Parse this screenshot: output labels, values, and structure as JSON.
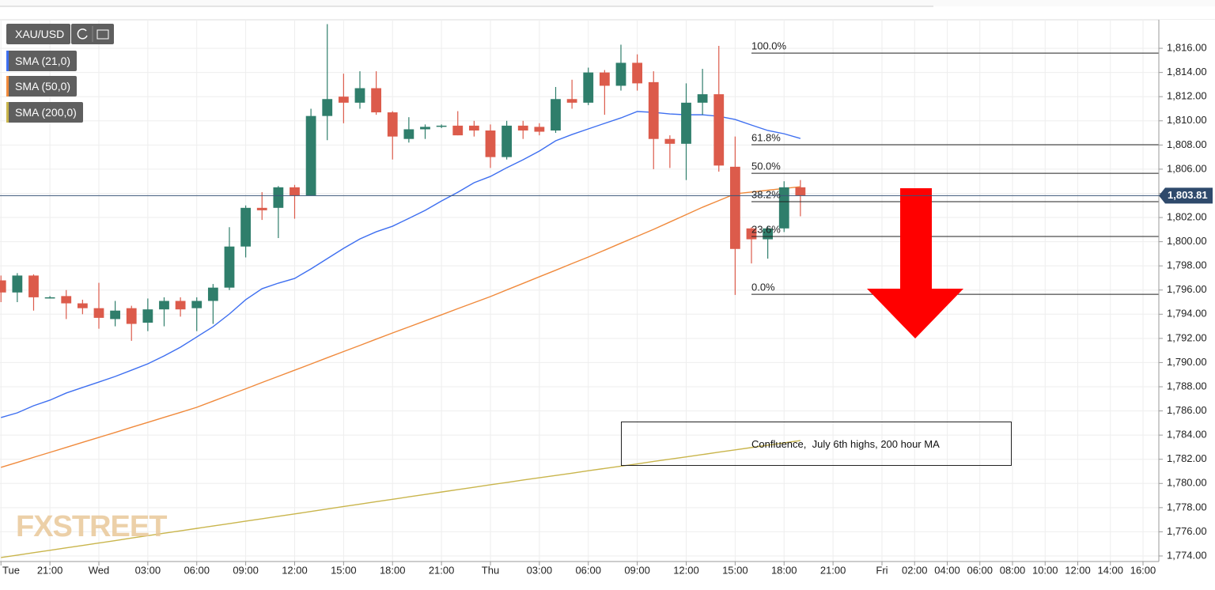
{
  "chart_data": {
    "type": "candlestick",
    "symbol": "XAU/USD",
    "x": [
      -6,
      -5,
      -4,
      -3,
      -2,
      -1,
      0,
      1,
      2,
      3,
      4,
      5,
      6,
      7,
      8,
      9,
      10,
      11,
      12,
      13,
      14,
      15,
      16,
      17,
      18,
      19,
      20,
      21,
      22,
      23,
      24,
      25,
      26,
      27,
      28,
      29,
      30,
      31,
      32,
      33,
      34,
      35,
      36,
      37,
      38,
      39,
      40,
      41,
      42,
      43
    ],
    "open": [
      1796.8,
      1795.8,
      1797.2,
      1795.4,
      1795.5,
      1794.9,
      1794.5,
      1793.6,
      1794.5,
      1793.3,
      1794.4,
      1795.1,
      1794.5,
      1795.1,
      1796.2,
      1799.6,
      1802.8,
      1802.8,
      1804.5,
      1803.8,
      1810.4,
      1812.0,
      1811.5,
      1812.7,
      1810.7,
      1808.5,
      1809.3,
      1809.6,
      1809.6,
      1809.6,
      1809.2,
      1807.0,
      1809.6,
      1809.5,
      1809.2,
      1811.8,
      1811.5,
      1814.0,
      1812.9,
      1814.8,
      1813.2,
      1808.5,
      1808.1,
      1811.5,
      1812.2,
      1806.2,
      1801.1,
      1800.2,
      1801.1,
      1804.5
    ],
    "high": [
      1797.2,
      1797.4,
      1797.3,
      1795.5,
      1796.0,
      1795.2,
      1796.6,
      1795.1,
      1794.7,
      1795.3,
      1795.4,
      1795.4,
      1795.4,
      1796.5,
      1801.2,
      1803.0,
      1804.1,
      1804.6,
      1804.7,
      1811.0,
      1818.0,
      1813.9,
      1814.1,
      1814.1,
      1810.8,
      1810.3,
      1809.7,
      1809.7,
      1810.8,
      1810.0,
      1809.7,
      1810.0,
      1810.0,
      1809.8,
      1812.8,
      1813.4,
      1814.4,
      1814.2,
      1816.3,
      1815.5,
      1814.1,
      1808.8,
      1813.1,
      1814.3,
      1816.2,
      1808.7,
      1801.2,
      1801.3,
      1805.0,
      1805.1
    ],
    "low": [
      1795.0,
      1795.0,
      1794.3,
      1795.3,
      1793.6,
      1794.0,
      1792.8,
      1793.0,
      1791.8,
      1792.6,
      1793.0,
      1793.8,
      1792.6,
      1793.2,
      1796.0,
      1798.7,
      1801.8,
      1800.3,
      1801.9,
      1803.8,
      1808.4,
      1809.8,
      1811.0,
      1810.5,
      1806.8,
      1808.2,
      1808.5,
      1809.4,
      1808.8,
      1808.7,
      1806.1,
      1806.8,
      1808.5,
      1808.8,
      1809.0,
      1811.0,
      1811.3,
      1810.5,
      1812.5,
      1812.5,
      1806.0,
      1806.1,
      1805.1,
      1810.5,
      1805.8,
      1795.6,
      1798.2,
      1798.6,
      1800.8,
      1802.1
    ],
    "close": [
      1795.8,
      1797.2,
      1795.4,
      1795.4,
      1794.9,
      1794.5,
      1793.7,
      1794.3,
      1793.2,
      1794.4,
      1795.1,
      1794.4,
      1795.1,
      1796.2,
      1799.6,
      1802.8,
      1802.6,
      1804.5,
      1803.8,
      1810.4,
      1811.8,
      1811.5,
      1812.7,
      1810.7,
      1808.7,
      1809.3,
      1809.5,
      1809.6,
      1808.8,
      1809.2,
      1807.0,
      1809.6,
      1809.2,
      1809.1,
      1811.8,
      1811.5,
      1814.0,
      1812.9,
      1814.8,
      1813.1,
      1808.5,
      1808.1,
      1811.5,
      1812.2,
      1806.3,
      1799.4,
      1800.2,
      1801.1,
      1804.5,
      1803.8
    ],
    "up_color": "#2f7e6b",
    "down_color": "#dc5b4b",
    "series": [
      {
        "name": "SMA (21,0)",
        "color": "#3e6ff0",
        "values": [
          1785.45,
          1785.84,
          1786.43,
          1786.89,
          1787.48,
          1787.94,
          1788.39,
          1788.85,
          1789.37,
          1789.9,
          1790.55,
          1791.27,
          1792.12,
          1792.97,
          1794.02,
          1795.2,
          1796.11,
          1796.57,
          1796.96,
          1797.75,
          1798.6,
          1799.45,
          1800.23,
          1800.82,
          1801.28,
          1801.93,
          1802.59,
          1803.37,
          1804.09,
          1804.88,
          1805.4,
          1806.12,
          1806.78,
          1807.5,
          1808.35,
          1808.87,
          1809.33,
          1809.79,
          1810.24,
          1810.77,
          1810.7,
          1810.57,
          1810.5,
          1810.5,
          1810.37,
          1810.11,
          1809.65,
          1809.2,
          1808.93,
          1808.54
        ]
      },
      {
        "name": "SMA (50,0)",
        "color": "#f08a3c",
        "values": [
          1781.33,
          1781.74,
          1782.16,
          1782.57,
          1782.98,
          1783.4,
          1783.81,
          1784.22,
          1784.64,
          1785.05,
          1785.47,
          1785.88,
          1786.3,
          1786.81,
          1787.32,
          1787.83,
          1788.35,
          1788.86,
          1789.37,
          1789.88,
          1790.4,
          1790.91,
          1791.42,
          1791.94,
          1792.45,
          1792.95,
          1793.45,
          1793.95,
          1794.46,
          1794.96,
          1795.46,
          1796.01,
          1796.55,
          1797.1,
          1797.64,
          1798.19,
          1798.73,
          1799.3,
          1799.88,
          1800.45,
          1801.02,
          1801.63,
          1802.24,
          1802.85,
          1803.4,
          1803.96,
          1804.11,
          1804.26,
          1804.4,
          1804.55
        ]
      },
      {
        "name": "SMA (200,0)",
        "color": "#c9b54c",
        "values": [
          1773.87,
          1774.07,
          1774.27,
          1774.47,
          1774.67,
          1774.87,
          1775.07,
          1775.27,
          1775.48,
          1775.68,
          1775.88,
          1776.08,
          1776.28,
          1776.48,
          1776.68,
          1776.88,
          1777.08,
          1777.28,
          1777.48,
          1777.68,
          1777.89,
          1778.09,
          1778.29,
          1778.49,
          1778.69,
          1778.89,
          1779.09,
          1779.29,
          1779.49,
          1779.69,
          1779.89,
          1780.08,
          1780.28,
          1780.47,
          1780.66,
          1780.85,
          1781.05,
          1781.24,
          1781.43,
          1781.62,
          1781.82,
          1782.01,
          1782.2,
          1782.39,
          1782.59,
          1782.78,
          1782.97,
          1783.16,
          1783.36,
          1783.55
        ]
      }
    ],
    "fib_start": 40,
    "fib_levels": [
      {
        "label": "100.0%",
        "value": 1815.6
      },
      {
        "label": "61.8%",
        "value": 1808.02
      },
      {
        "label": "50.0%",
        "value": 1805.66
      },
      {
        "label": "38.2%",
        "value": 1803.31
      },
      {
        "label": "23.6%",
        "value": 1800.43
      },
      {
        "label": "0.0%",
        "value": 1795.65
      }
    ],
    "last_price": {
      "value": 1803.81,
      "label": "1,803.81"
    },
    "annotation": "Confluence,  July 6th highs, 200 hour MA",
    "watermark": "FXSTREET",
    "xlim": [
      -6.06,
      64.97
    ],
    "ylim": [
      1773.54,
      1818.36
    ],
    "xticks": [
      {
        "value": -6,
        "label": "Tue"
      },
      {
        "value": -3,
        "label": "21:00"
      },
      {
        "value": 0,
        "label": "Wed"
      },
      {
        "value": 3,
        "label": "03:00"
      },
      {
        "value": 6,
        "label": "06:00"
      },
      {
        "value": 9,
        "label": "09:00"
      },
      {
        "value": 12,
        "label": "12:00"
      },
      {
        "value": 15,
        "label": "15:00"
      },
      {
        "value": 18,
        "label": "18:00"
      },
      {
        "value": 21,
        "label": "21:00"
      },
      {
        "value": 24,
        "label": "Thu"
      },
      {
        "value": 27,
        "label": "03:00"
      },
      {
        "value": 30,
        "label": "06:00"
      },
      {
        "value": 33,
        "label": "09:00"
      },
      {
        "value": 36,
        "label": "12:00"
      },
      {
        "value": 39,
        "label": "15:00"
      },
      {
        "value": 42,
        "label": "18:00"
      },
      {
        "value": 45,
        "label": "21:00"
      },
      {
        "value": 48,
        "label": "Fri"
      },
      {
        "value": 50,
        "label": "02:00"
      },
      {
        "value": 52,
        "label": "04:00"
      },
      {
        "value": 54,
        "label": "06:00"
      },
      {
        "value": 56,
        "label": "08:00"
      },
      {
        "value": 58,
        "label": "10:00"
      },
      {
        "value": 60,
        "label": "12:00"
      },
      {
        "value": 62,
        "label": "14:00"
      },
      {
        "value": 64,
        "label": "16:00"
      }
    ],
    "yticks": [
      {
        "value": 1774,
        "label": "1,774.00"
      },
      {
        "value": 1776,
        "label": "1,776.00"
      },
      {
        "value": 1778,
        "label": "1,778.00"
      },
      {
        "value": 1780,
        "label": "1,780.00"
      },
      {
        "value": 1782,
        "label": "1,782.00"
      },
      {
        "value": 1784,
        "label": "1,784.00"
      },
      {
        "value": 1786,
        "label": "1,786.00"
      },
      {
        "value": 1788,
        "label": "1,788.00"
      },
      {
        "value": 1790,
        "label": "1,790.00"
      },
      {
        "value": 1792,
        "label": "1,792.00"
      },
      {
        "value": 1794,
        "label": "1,794.00"
      },
      {
        "value": 1796,
        "label": "1,796.00"
      },
      {
        "value": 1798,
        "label": "1,798.00"
      },
      {
        "value": 1800,
        "label": "1,800.00"
      },
      {
        "value": 1802,
        "label": "1,802.00"
      },
      {
        "value": 1804,
        "label": "1,804.00"
      },
      {
        "value": 1806,
        "label": "1,806.00"
      },
      {
        "value": 1808,
        "label": "1,808.00"
      },
      {
        "value": 1810,
        "label": "1,810.00"
      },
      {
        "value": 1812,
        "label": "1,812.00"
      },
      {
        "value": 1814,
        "label": "1,814.00"
      },
      {
        "value": 1816,
        "label": "1,816.00"
      }
    ],
    "grid": true
  }
}
